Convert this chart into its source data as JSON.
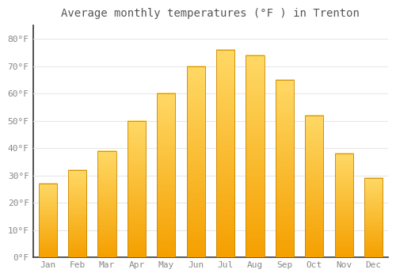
{
  "months": [
    "Jan",
    "Feb",
    "Mar",
    "Apr",
    "May",
    "Jun",
    "Jul",
    "Aug",
    "Sep",
    "Oct",
    "Nov",
    "Dec"
  ],
  "values": [
    27,
    32,
    39,
    50,
    60,
    70,
    76,
    74,
    65,
    52,
    38,
    29
  ],
  "bar_color_bottom": "#F5A623",
  "bar_color_top": "#FFD97A",
  "bar_color_mid": "#FFC93C",
  "title": "Average monthly temperatures (°F ) in Trenton",
  "ylim": [
    0,
    85
  ],
  "yticks": [
    0,
    10,
    20,
    30,
    40,
    50,
    60,
    70,
    80
  ],
  "ytick_labels": [
    "0°F",
    "10°F",
    "20°F",
    "30°F",
    "40°F",
    "50°F",
    "60°F",
    "70°F",
    "80°F"
  ],
  "background_color": "#FFFFFF",
  "grid_color": "#E8E8E8",
  "axis_color": "#333333",
  "title_fontsize": 10,
  "tick_fontsize": 8,
  "bar_width": 0.62
}
